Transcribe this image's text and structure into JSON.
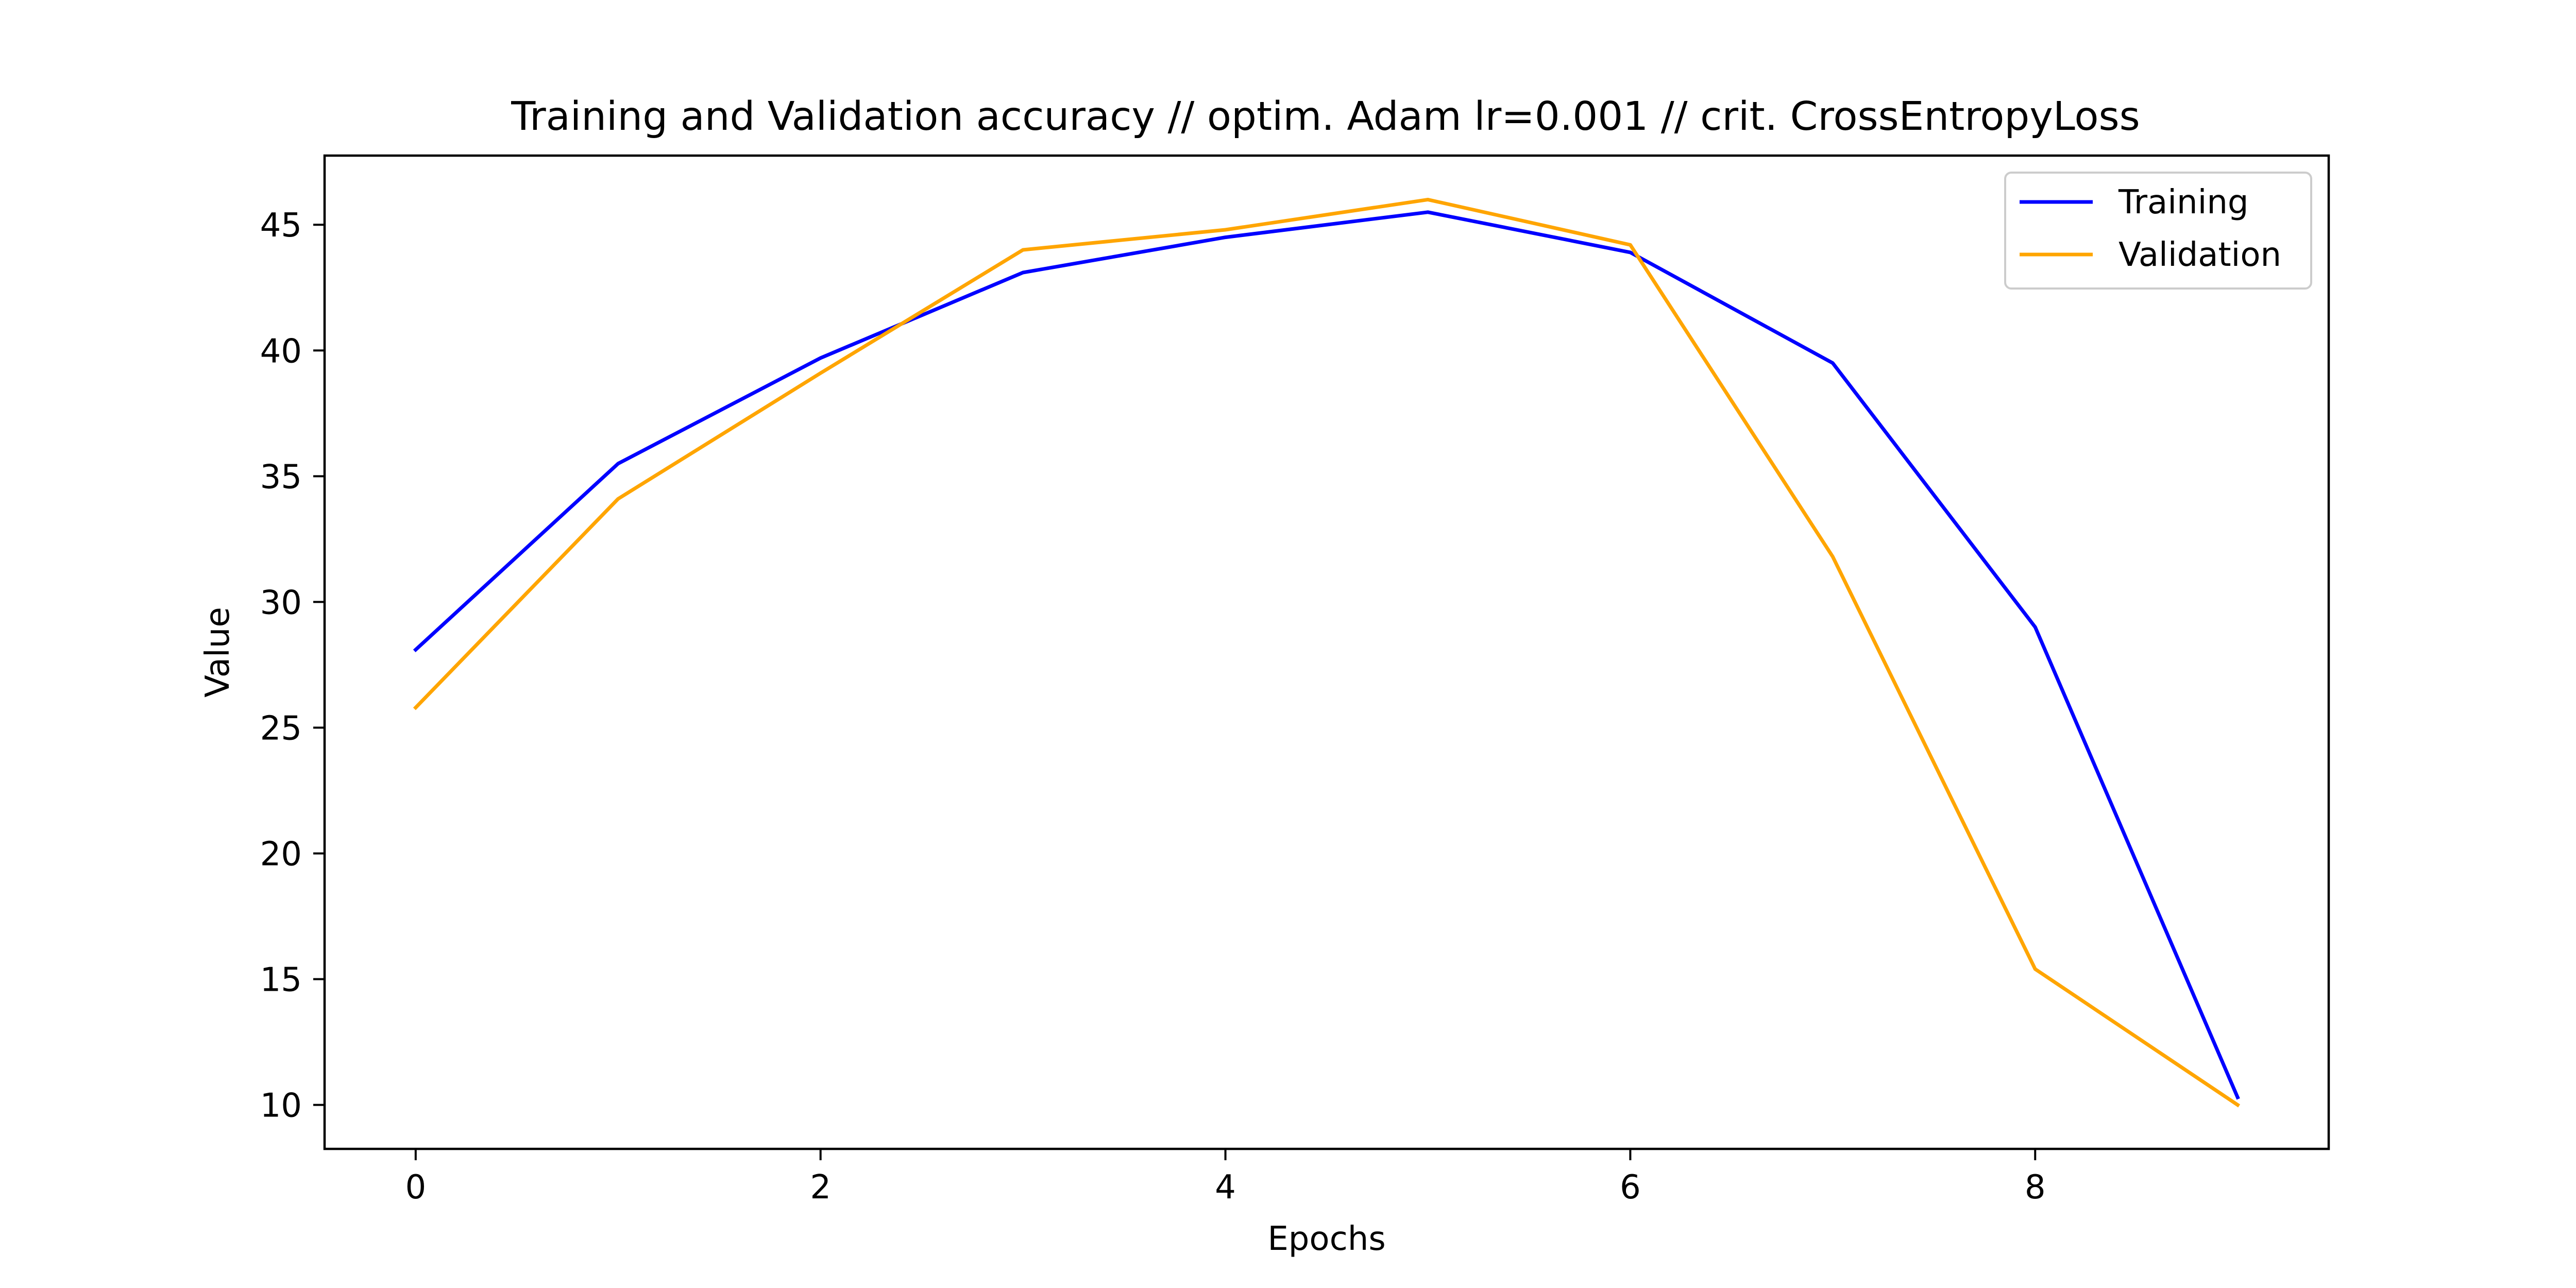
{
  "chart_data": {
    "type": "line",
    "title": "Training and Validation accuracy // optim. Adam lr=0.001 // crit. CrossEntropyLoss",
    "xlabel": "Epochs",
    "ylabel": "Value",
    "x": [
      0,
      1,
      2,
      3,
      4,
      5,
      6,
      7,
      8,
      9
    ],
    "xlim": [
      -0.45,
      9.45
    ],
    "ylim": [
      8.25,
      47.75
    ],
    "xticks": [
      0,
      2,
      4,
      6,
      8
    ],
    "yticks": [
      10,
      15,
      20,
      25,
      30,
      35,
      40,
      45
    ],
    "grid": false,
    "legend_position": "top-right",
    "series": [
      {
        "name": "Training",
        "color": "#0000ff",
        "values": [
          28.1,
          35.5,
          39.7,
          43.1,
          44.5,
          45.5,
          43.9,
          39.5,
          29.0,
          10.3
        ]
      },
      {
        "name": "Validation",
        "color": "#ffa500",
        "values": [
          25.8,
          34.1,
          39.1,
          44.0,
          44.8,
          46.0,
          44.2,
          31.8,
          15.4,
          10.0
        ]
      }
    ]
  }
}
